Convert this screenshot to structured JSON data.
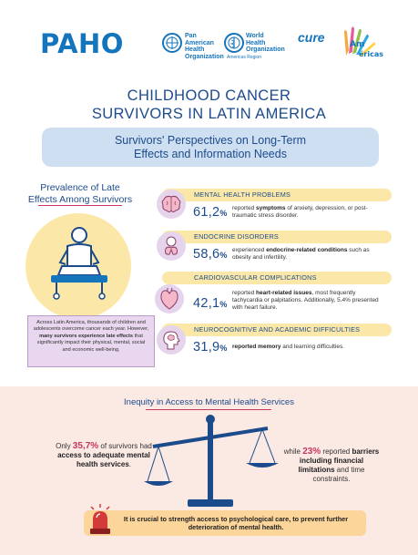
{
  "header": {
    "paho_logo": "PAHO",
    "org1_lines": [
      "Pan American",
      "Health",
      "Organization"
    ],
    "org2_lines": [
      "World Health",
      "Organization"
    ],
    "org2_sub": "Americas Region",
    "cure_word": "cure",
    "cure_overlay": "Americas"
  },
  "title": {
    "line1": "CHILDHOOD CANCER",
    "line2": "SURVIVORS IN LATIN AMERICA",
    "subtitle": "Survivors' Perspectives on Long-Term Effects and Information Needs"
  },
  "prevalence": {
    "title": "Prevalence of Late Effects Among Survivors",
    "box_part1": "Across Latin America, thousands of children and adolescents overcome cancer each year. However, ",
    "box_bold": "many survivors experience late effects",
    "box_part2": " that significantly impact their physical, mental, social and economic well-being."
  },
  "stats": [
    {
      "category": "MENTAL HEALTH PROBLEMS",
      "percent": "61,2",
      "icon": "brain-icon",
      "text_pre": "reported ",
      "text_bold": "symptoms",
      "text_post": " of anxiety, depression, or post-traumatic stress disorder."
    },
    {
      "category": "ENDOCRINE DISORDERS",
      "percent": "58,6",
      "icon": "thyroid-icon",
      "text_pre": "experienced ",
      "text_bold": "endocrine-related conditions",
      "text_post": " such as obesity and infertility."
    },
    {
      "category": "CARDIOVASCULAR COMPLICATIONS",
      "percent": "42,1",
      "icon": "heart-icon",
      "text_pre": "reported ",
      "text_bold": "heart-related issues",
      "text_post": ", most frequently tachycardia or palpitations. Additionally, 5.4% presented with heart failure."
    },
    {
      "category": "NEUROCOGNITIVE AND ACADEMIC DIFFICULTIES",
      "percent": "31,9",
      "icon": "head-brain-icon",
      "text_pre": "",
      "text_bold": "reported memory",
      "text_post": " and learning difficulties."
    }
  ],
  "percent_symbol": "%",
  "inequity": {
    "title": "Inequity in Access to Mental Health Services",
    "left_pre": "Only ",
    "left_value": "35,7%",
    "left_mid": " of survivors had ",
    "left_bold": "access to adequate mental health services",
    "left_post": ".",
    "right_pre": "while ",
    "right_value": "23%",
    "right_mid": " reported ",
    "right_bold": "barriers including financial limitations",
    "right_post": " and time constraints."
  },
  "callout": {
    "text": "It is crucial to strength access to psychological care, to prevent further deterioration of mental health."
  },
  "colors": {
    "brand_blue": "#1575bc",
    "title_navy": "#1c4b8c",
    "accent_pink": "#c7365f",
    "yellow": "#fbe8a8",
    "lavender": "#e6d4ec",
    "callout_orange": "#fbd59a"
  }
}
